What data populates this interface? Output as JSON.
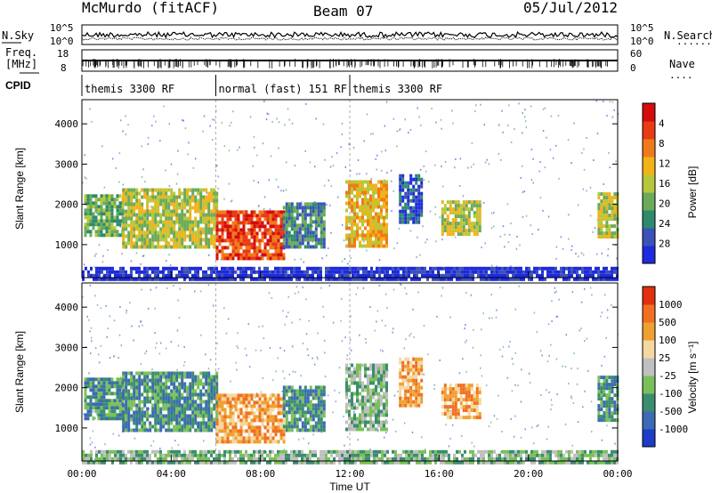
{
  "header": {
    "station": "McMurdo (fitACF)",
    "beam": "Beam 07",
    "date": "05/Jul/2012"
  },
  "noise_panel": {
    "left_label": "N.Sky",
    "right_label": "N.Search",
    "tick_top": "10^5",
    "tick_bottom": "10^0"
  },
  "freq_panel": {
    "left_label_line1": "Freq.",
    "left_label_line2": "[MHz]",
    "right_label": "Nave",
    "left_ticks": [
      "18",
      "8"
    ],
    "right_ticks": [
      "60",
      "0"
    ]
  },
  "cpid": {
    "label": "CPID",
    "segments": [
      {
        "label": "themis 3300 RF",
        "start_hour": 0,
        "end_hour": 6
      },
      {
        "label": "normal (fast) 151 RF",
        "start_hour": 6,
        "end_hour": 12
      },
      {
        "label": "themis 3300 RF",
        "start_hour": 12,
        "end_hour": 24
      }
    ]
  },
  "chart_data": [
    {
      "type": "heatmap",
      "name": "power",
      "ylabel": "Slant Range [km]",
      "xlabel": "Time UT",
      "xlim": [
        0,
        24
      ],
      "ylim": [
        180,
        4600
      ],
      "y_ticks": [
        1000,
        2000,
        3000,
        4000
      ],
      "x_ticks": [
        "00:00",
        "04:00",
        "08:00",
        "12:00",
        "16:00",
        "20:00",
        "00:00"
      ],
      "colorbar": {
        "label": "Power [dB]",
        "ticks": [
          "4",
          "8",
          "12",
          "16",
          "20",
          "24",
          "28"
        ],
        "colors": [
          "#1e2adc",
          "#3c52b8",
          "#2e8a6e",
          "#6aaa58",
          "#b6c83a",
          "#f2b21a",
          "#f07a1a",
          "#e83a14",
          "#d40c0c"
        ]
      },
      "regions": [
        {
          "t0": 0.1,
          "t1": 1.8,
          "r0": 1200,
          "r1": 2250,
          "level": 3
        },
        {
          "t0": 1.8,
          "t1": 6.0,
          "r0": 950,
          "r1": 2400,
          "level": 4
        },
        {
          "t0": 6.0,
          "t1": 9.0,
          "r0": 700,
          "r1": 1850,
          "level": 7
        },
        {
          "t0": 9.0,
          "t1": 10.8,
          "r0": 950,
          "r1": 2050,
          "level": 2
        },
        {
          "t0": 11.8,
          "t1": 13.6,
          "r0": 1000,
          "r1": 2600,
          "level": 5
        },
        {
          "t0": 14.2,
          "t1": 15.2,
          "r0": 1600,
          "r1": 2750,
          "level": 1
        },
        {
          "t0": 16.1,
          "t1": 17.8,
          "r0": 1250,
          "r1": 2100,
          "level": 4
        },
        {
          "t0": 23.1,
          "t1": 24.0,
          "r0": 1200,
          "r1": 2300,
          "level": 4
        },
        {
          "t0": 0.0,
          "t1": 24.0,
          "r0": 180,
          "r1": 450,
          "level": 0
        }
      ]
    },
    {
      "type": "heatmap",
      "name": "velocity",
      "ylabel": "Slant Range [km]",
      "xlabel": "Time UT",
      "xlim": [
        0,
        24
      ],
      "ylim": [
        180,
        4600
      ],
      "y_ticks": [
        1000,
        2000,
        3000,
        4000
      ],
      "x_ticks": [
        "00:00",
        "04:00",
        "08:00",
        "12:00",
        "16:00",
        "20:00",
        "00:00"
      ],
      "colorbar": {
        "label": "Velocity [m s⁻¹]",
        "ticks": [
          "1000",
          "500",
          "100",
          "25",
          "-25",
          "-100",
          "-500",
          "-1000"
        ],
        "colors": [
          "#1e3cc8",
          "#3c6ab4",
          "#3c8c70",
          "#7ac05a",
          "#c0c0c0",
          "#f5d8a0",
          "#f0a030",
          "#f07020",
          "#e03010"
        ]
      },
      "regions": [
        {
          "t0": 0.1,
          "t1": 1.8,
          "r0": 1200,
          "r1": 2250,
          "level": 2
        },
        {
          "t0": 1.8,
          "t1": 6.0,
          "r0": 950,
          "r1": 2400,
          "level": 2
        },
        {
          "t0": 6.0,
          "t1": 9.0,
          "r0": 700,
          "r1": 1850,
          "level": 6
        },
        {
          "t0": 9.0,
          "t1": 10.8,
          "r0": 950,
          "r1": 2050,
          "level": 2
        },
        {
          "t0": 11.8,
          "t1": 13.6,
          "r0": 1000,
          "r1": 2600,
          "level": 3
        },
        {
          "t0": 14.2,
          "t1": 15.2,
          "r0": 1600,
          "r1": 2750,
          "level": 6
        },
        {
          "t0": 16.1,
          "t1": 17.8,
          "r0": 1250,
          "r1": 2100,
          "level": 6
        },
        {
          "t0": 23.1,
          "t1": 24.0,
          "r0": 1200,
          "r1": 2300,
          "level": 2
        },
        {
          "t0": 0.0,
          "t1": 24.0,
          "r0": 180,
          "r1": 450,
          "level": 3
        }
      ]
    }
  ]
}
